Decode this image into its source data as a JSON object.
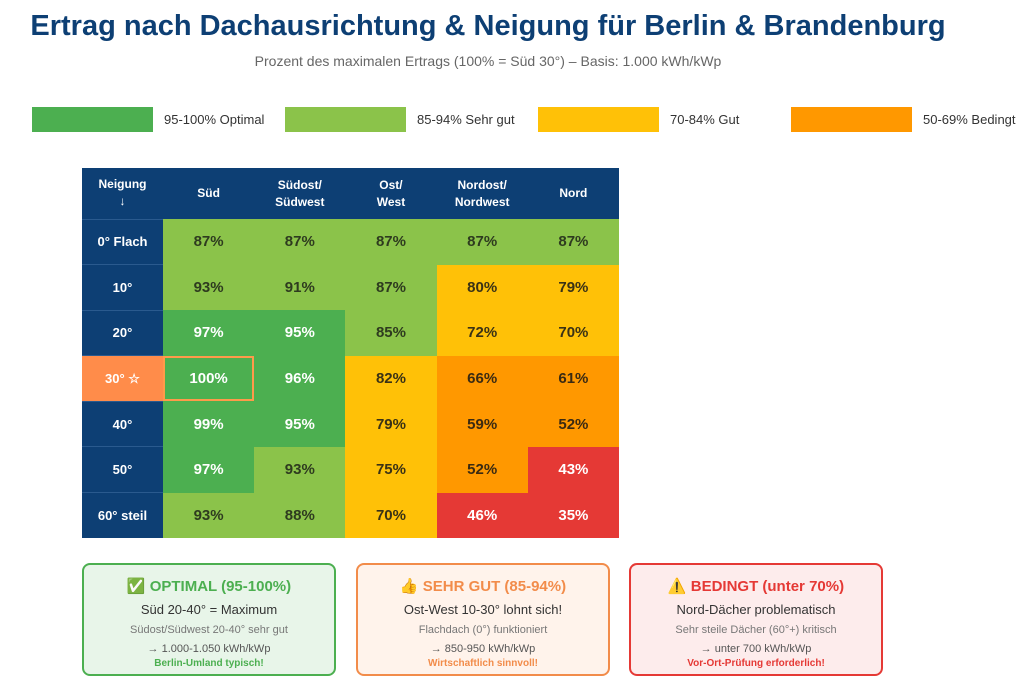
{
  "title": "Ertrag nach Dachausrichtung & Neigung für Berlin & Brandenburg",
  "subtitle": "Prozent des maximalen Ertrags (100% = Süd 30°) – Basis: 1.000 kWh/kWp",
  "legend": [
    {
      "label": "95-100% Optimal",
      "color": "#4caf50"
    },
    {
      "label": "85-94% Sehr gut",
      "color": "#8bc34a"
    },
    {
      "label": "70-84% Gut",
      "color": "#ffc107"
    },
    {
      "label": "50-69% Bedingt",
      "color": "#ff9800"
    }
  ],
  "chart_data": {
    "type": "heatmap",
    "corner_label": "Neigung ↓",
    "columns": [
      "Süd",
      "Südost/ Südwest",
      "Ost/ West",
      "Nordost/ Nordwest",
      "Nord"
    ],
    "rows": [
      "0° Flach",
      "10°",
      "20°",
      "30° ☆",
      "40°",
      "50°",
      "60° steil"
    ],
    "values": [
      [
        87,
        87,
        87,
        87,
        87
      ],
      [
        93,
        91,
        87,
        80,
        79
      ],
      [
        97,
        95,
        85,
        72,
        70
      ],
      [
        100,
        96,
        82,
        66,
        61
      ],
      [
        99,
        95,
        79,
        59,
        52
      ],
      [
        97,
        93,
        75,
        52,
        43
      ],
      [
        93,
        88,
        70,
        46,
        35
      ]
    ],
    "unit": "%",
    "highlight_row": "30° ☆",
    "colors": {
      "optimal": "#4caf50",
      "sehr_gut": "#8bc34a",
      "gut": "#ffc107",
      "bedingt": "#ff9800",
      "unter_50": "#e53935",
      "header": "#0d3f74",
      "highlight": "#ff8c4a"
    }
  },
  "cards": [
    {
      "icon": "check-icon",
      "title": "✅ OPTIMAL (95-100%)",
      "line1": "Süd 20-40° = Maximum",
      "line2": "Südost/Südwest 20-40° sehr gut",
      "line3": "→ 1.000-1.050 kWh/kWp",
      "line4": "Berlin-Umland typisch!",
      "color": "#4caf50",
      "bg": "#e8f5e9"
    },
    {
      "icon": "thumbs-up-icon",
      "title": "👍 SEHR GUT (85-94%)",
      "line1": "Ost-West 10-30° lohnt sich!",
      "line2": "Flachdach (0°) funktioniert",
      "line3": "→ 850-950 kWh/kWp",
      "line4": "Wirtschaftlich sinnvoll!",
      "color": "#f28c4a",
      "bg": "#fff3eb"
    },
    {
      "icon": "warning-icon",
      "title": "⚠️ BEDINGT (unter 70%)",
      "line1": "Nord-Dächer problematisch",
      "line2": "Sehr steile Dächer (60°+) kritisch",
      "line3": "→ unter 700 kWh/kWp",
      "line4": "Vor-Ort-Prüfung erforderlich!",
      "color": "#e53935",
      "bg": "#fdecec"
    }
  ]
}
